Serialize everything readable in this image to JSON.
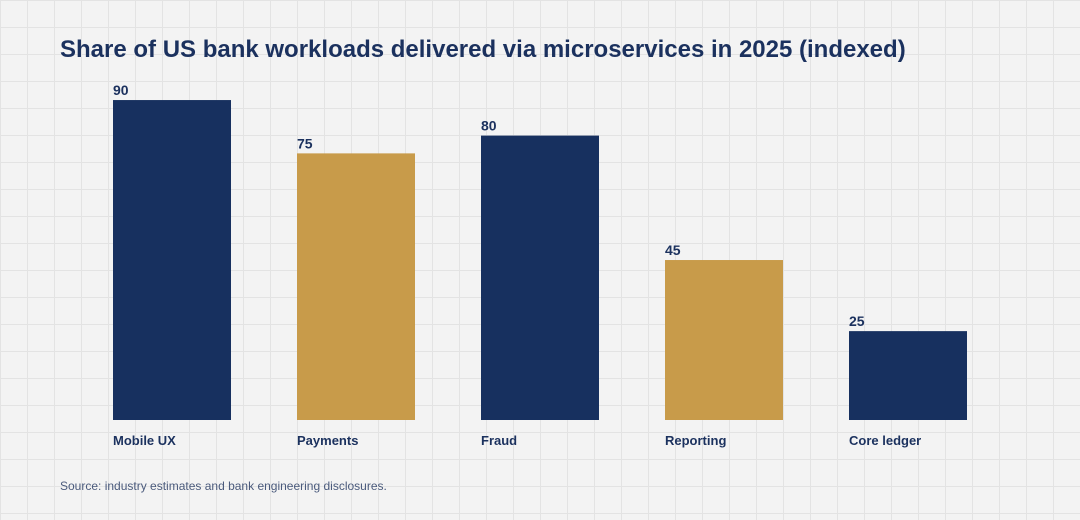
{
  "chart_data": {
    "type": "bar",
    "title": "Share of US bank workloads delivered via microservices in 2025 (indexed)",
    "categories": [
      "Mobile UX",
      "Payments",
      "Fraud",
      "Reporting",
      "Core ledger"
    ],
    "values": [
      90,
      75,
      80,
      45,
      25
    ],
    "bar_colors": [
      "#17305f",
      "#c89b4a",
      "#17305f",
      "#c89b4a",
      "#17305f"
    ],
    "xlabel": "",
    "ylabel": "",
    "ylim": [
      0,
      100
    ],
    "grid": false,
    "data_labels": true
  },
  "source": "Source: industry estimates and bank engineering disclosures.",
  "colors": {
    "navy": "#17305f",
    "gold": "#c89b4a",
    "label_text": "#1b315e"
  }
}
